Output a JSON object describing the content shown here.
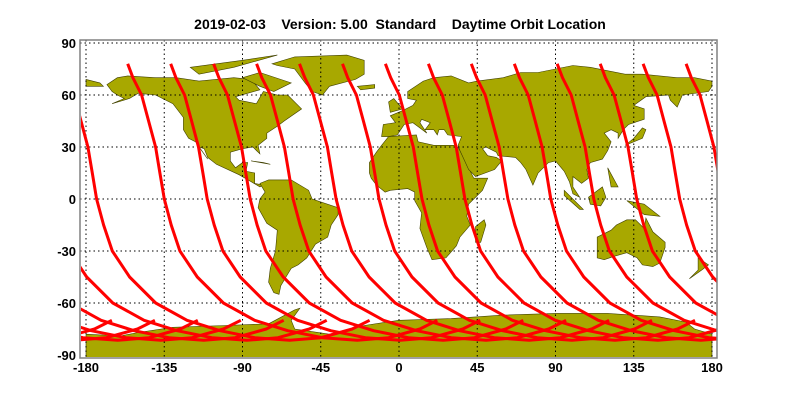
{
  "title": {
    "date": "2019-02-03",
    "version": "Version: 5.00",
    "product": "Standard",
    "subject": "Daytime Orbit Location"
  },
  "chart_data": {
    "type": "map",
    "projection": "equirectangular",
    "xlim": [
      -180,
      180
    ],
    "ylim": [
      -90,
      90
    ],
    "x_ticks": [
      "-180",
      "-135",
      "-90",
      "-45",
      "0",
      "45",
      "90",
      "135",
      "180"
    ],
    "y_ticks": [
      "90",
      "60",
      "30",
      "0",
      "-30",
      "-60",
      "-90"
    ],
    "grid": true,
    "grid_style": "dotted",
    "colors": {
      "land": "#a8a800",
      "coast": "#404000",
      "track": "#ff0000",
      "grid": "#000000"
    },
    "orbit_tracks": {
      "start_latitude": 78,
      "start_longitudes": [
        -156,
        -131.3,
        -106.6,
        -81.9,
        -57.2,
        -32.5,
        -7.8,
        16.9,
        41.6,
        66.3,
        91.0,
        115.7,
        140.4,
        165.1
      ],
      "profile_lat_lonoffset": [
        [
          78,
          0
        ],
        [
          74,
          1.5
        ],
        [
          70,
          3
        ],
        [
          60,
          8
        ],
        [
          45,
          12
        ],
        [
          30,
          16
        ],
        [
          15,
          18.5
        ],
        [
          0,
          21
        ],
        [
          -15,
          25
        ],
        [
          -30,
          30
        ],
        [
          -45,
          40
        ],
        [
          -60,
          55
        ],
        [
          -70,
          73
        ],
        [
          -76,
          92
        ],
        [
          -80,
          112
        ],
        [
          -81.5,
          132
        ],
        [
          -80,
          150
        ],
        [
          -75,
          168
        ],
        [
          -70,
          178
        ]
      ]
    }
  }
}
